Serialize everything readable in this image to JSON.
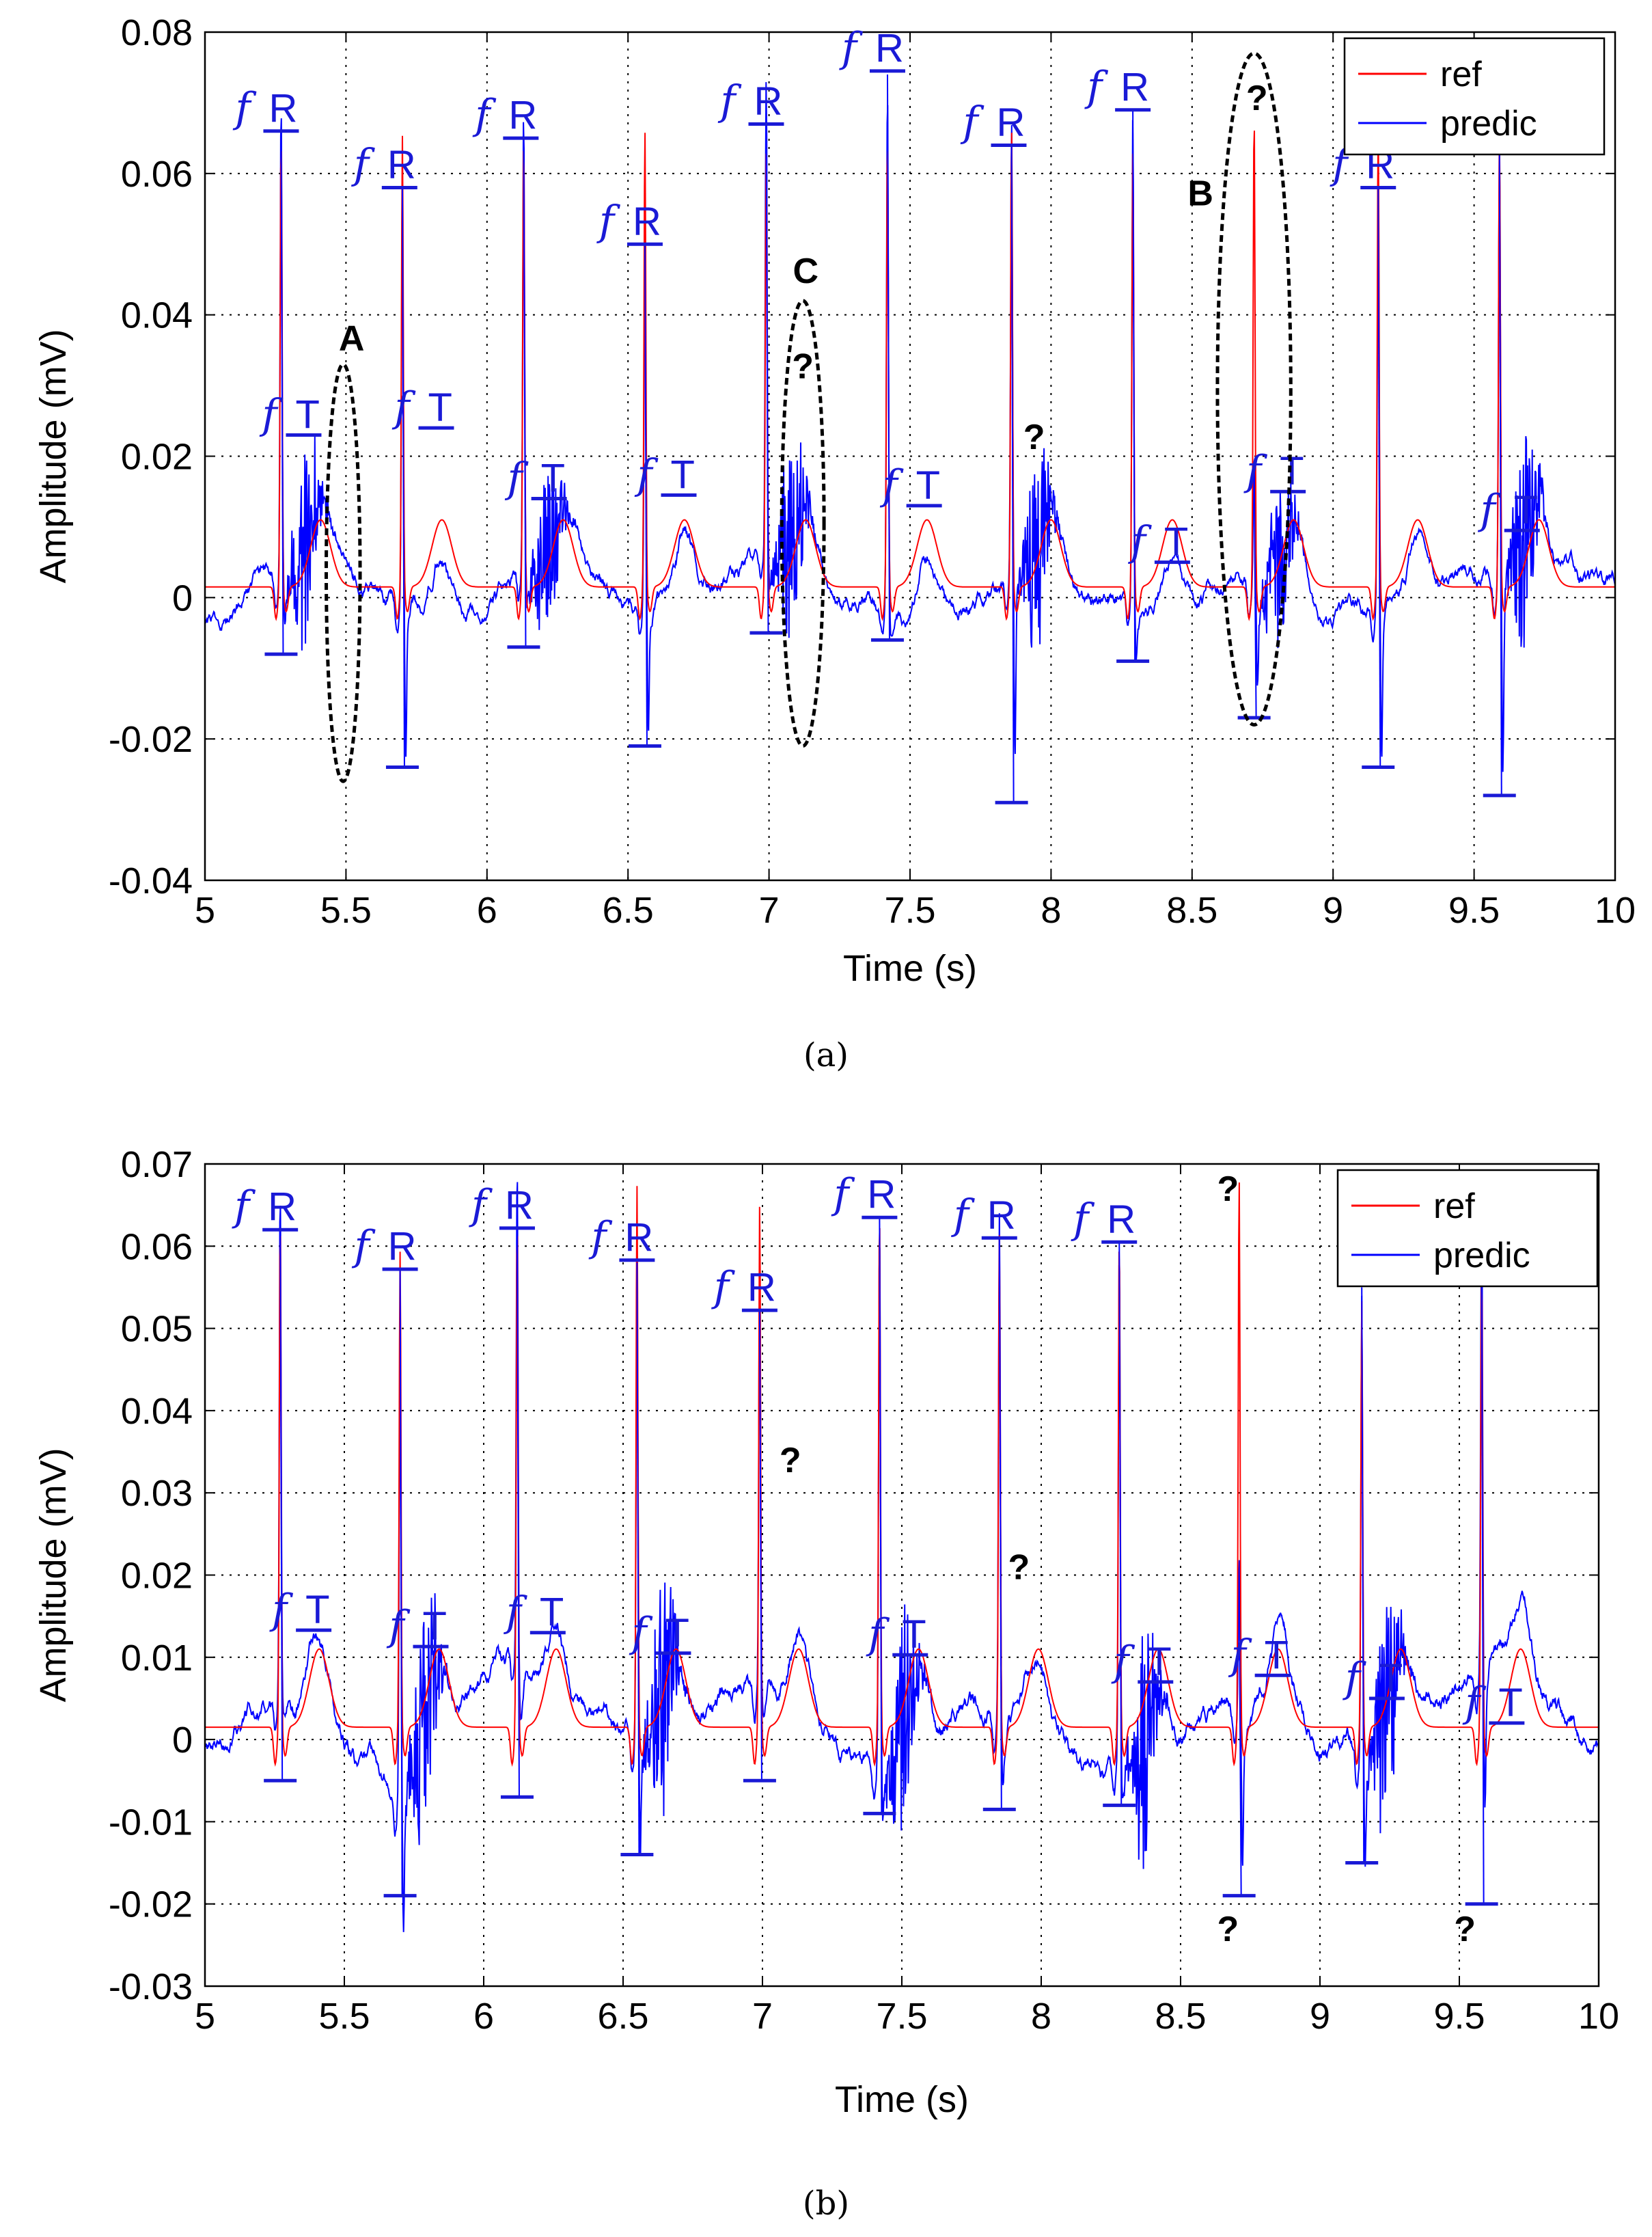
{
  "chart_data": [
    {
      "type": "line",
      "caption": "(a)",
      "xlabel": "Time (s)",
      "ylabel": "Amplitude (mV)",
      "xlim": [
        5,
        10
      ],
      "ylim": [
        -0.04,
        0.08
      ],
      "xticks": [
        "5",
        "5.5",
        "6",
        "6.5",
        "7",
        "7.5",
        "8",
        "8.5",
        "9",
        "9.5",
        "10"
      ],
      "yticks": [
        "-0.04",
        "-0.02",
        "0",
        "0.02",
        "0.04",
        "0.06",
        "0.08"
      ],
      "grid": true,
      "legend": {
        "position": "top-right",
        "entries": [
          "ref",
          "predic"
        ]
      },
      "series": [
        {
          "name": "ref",
          "color": "#ff0000"
        },
        {
          "name": "predic",
          "color": "#0000ff"
        }
      ],
      "r_peaks": [
        {
          "t": 5.27,
          "ref": 0.064,
          "pred": 0.066,
          "trough": -0.008
        },
        {
          "t": 5.7,
          "ref": 0.064,
          "pred": 0.058,
          "trough": -0.024
        },
        {
          "t": 6.13,
          "ref": 0.064,
          "pred": 0.065,
          "trough": -0.007
        },
        {
          "t": 6.56,
          "ref": 0.065,
          "pred": 0.05,
          "trough": -0.021
        },
        {
          "t": 6.99,
          "ref": 0.062,
          "pred": 0.067,
          "trough": -0.005
        },
        {
          "t": 7.42,
          "ref": 0.064,
          "pred": 0.074,
          "trough": -0.006
        },
        {
          "t": 7.86,
          "ref": 0.065,
          "pred": 0.064,
          "trough": -0.029
        },
        {
          "t": 8.29,
          "ref": 0.062,
          "pred": 0.069,
          "trough": -0.009
        },
        {
          "t": 8.72,
          "ref": 0.067,
          "pred": 0.018,
          "trough": -0.017
        },
        {
          "t": 9.16,
          "ref": 0.066,
          "pred": 0.058,
          "trough": -0.024
        },
        {
          "t": 9.59,
          "ref": 0.065,
          "pred": 0.063,
          "trough": -0.028
        }
      ],
      "annotations": [
        {
          "kind": "fR",
          "f": "f",
          "label": "R",
          "x": 5.27,
          "y": 0.066
        },
        {
          "kind": "fR",
          "f": "f",
          "label": "R",
          "x": 5.69,
          "y": 0.058
        },
        {
          "kind": "fR",
          "f": "f",
          "label": "R",
          "x": 6.12,
          "y": 0.065
        },
        {
          "kind": "fR",
          "f": "f",
          "label": "R",
          "x": 6.56,
          "y": 0.05
        },
        {
          "kind": "fR",
          "f": "f",
          "label": "R",
          "x": 6.99,
          "y": 0.067
        },
        {
          "kind": "fR",
          "f": "f",
          "label": "R",
          "x": 7.42,
          "y": 0.0745
        },
        {
          "kind": "fR",
          "f": "f",
          "label": "R",
          "x": 7.85,
          "y": 0.064
        },
        {
          "kind": "fR",
          "f": "f",
          "label": "R",
          "x": 8.29,
          "y": 0.069
        },
        {
          "kind": "fR",
          "f": "f",
          "label": "R",
          "x": 9.16,
          "y": 0.058
        },
        {
          "kind": "fT",
          "f": "f",
          "label": "T",
          "x": 5.35,
          "y": 0.023
        },
        {
          "kind": "fT",
          "f": "f",
          "label": "T",
          "x": 5.82,
          "y": 0.024
        },
        {
          "kind": "fT",
          "f": "f",
          "label": "T",
          "x": 6.22,
          "y": 0.014
        },
        {
          "kind": "fT",
          "f": "f",
          "label": "T",
          "x": 6.68,
          "y": 0.0145
        },
        {
          "kind": "fT",
          "f": "f",
          "label": "T",
          "x": 7.55,
          "y": 0.013
        },
        {
          "kind": "fT",
          "f": "f",
          "label": "T",
          "x": 8.43,
          "y": 0.005
        },
        {
          "kind": "fT",
          "f": "f",
          "label": "T",
          "x": 8.84,
          "y": 0.015
        },
        {
          "kind": "fT",
          "f": "f",
          "label": "T",
          "x": 9.67,
          "y": 0.0095
        }
      ],
      "question_marks": [
        {
          "text": "?",
          "x": 7.12,
          "y": 0.031
        },
        {
          "text": "?",
          "x": 7.94,
          "y": 0.021
        },
        {
          "text": "?",
          "x": 8.73,
          "y": 0.069
        }
      ],
      "regions": [
        {
          "label": "A",
          "cx": 5.49,
          "cy": 0.0035,
          "rx": 0.06,
          "ry": 0.0295,
          "lx": 5.52,
          "ly": 0.035
        },
        {
          "label": "C",
          "cx": 7.12,
          "cy": 0.0105,
          "rx": 0.075,
          "ry": 0.0315,
          "lx": 7.13,
          "ly": 0.0445
        },
        {
          "label": "B",
          "cx": 8.72,
          "cy": 0.0295,
          "rx": 0.13,
          "ry": 0.0475,
          "lx": 8.53,
          "ly": 0.0555
        }
      ]
    },
    {
      "type": "line",
      "caption": "(b)",
      "xlabel": "Time (s)",
      "ylabel": "Amplitude (mV)",
      "xlim": [
        5,
        10
      ],
      "ylim": [
        -0.03,
        0.07
      ],
      "xticks": [
        "5",
        "5.5",
        "6",
        "6.5",
        "7",
        "7.5",
        "8",
        "8.5",
        "9",
        "9.5",
        "10"
      ],
      "yticks": [
        "-0.03",
        "-0.02",
        "-0.01",
        "0",
        "0.01",
        "0.02",
        "0.03",
        "0.04",
        "0.05",
        "0.06",
        "0.07"
      ],
      "grid": true,
      "legend": {
        "position": "top-right",
        "entries": [
          "ref",
          "predic"
        ]
      },
      "series": [
        {
          "name": "ref",
          "color": "#ff0000"
        },
        {
          "name": "predic",
          "color": "#0000ff"
        }
      ],
      "r_peaks": [
        {
          "t": 5.27,
          "ref": 0.062,
          "pred": 0.062,
          "trough": -0.005
        },
        {
          "t": 5.7,
          "ref": 0.058,
          "pred": 0.057,
          "trough": -0.019
        },
        {
          "t": 6.12,
          "ref": 0.062,
          "pred": 0.062,
          "trough": -0.007
        },
        {
          "t": 6.55,
          "ref": 0.066,
          "pred": 0.058,
          "trough": -0.014
        },
        {
          "t": 6.99,
          "ref": 0.064,
          "pred": 0.052,
          "trough": -0.005
        },
        {
          "t": 7.42,
          "ref": 0.063,
          "pred": 0.0635,
          "trough": -0.009
        },
        {
          "t": 7.85,
          "ref": 0.06,
          "pred": 0.061,
          "trough": -0.0085
        },
        {
          "t": 8.28,
          "ref": 0.06,
          "pred": 0.0605,
          "trough": -0.008
        },
        {
          "t": 8.71,
          "ref": 0.067,
          "pred": 0.02,
          "trough": -0.019
        },
        {
          "t": 9.15,
          "ref": 0.052,
          "pred": 0.055,
          "trough": -0.015
        },
        {
          "t": 9.58,
          "ref": 0.056,
          "pred": 0.057,
          "trough": -0.02
        }
      ],
      "annotations": [
        {
          "kind": "fR",
          "f": "f",
          "label": "R",
          "x": 5.27,
          "y": 0.062
        },
        {
          "kind": "fR",
          "f": "f",
          "label": "R",
          "x": 5.7,
          "y": 0.0572
        },
        {
          "kind": "fR",
          "f": "f",
          "label": "R",
          "x": 6.12,
          "y": 0.0622
        },
        {
          "kind": "fR",
          "f": "f",
          "label": "R",
          "x": 6.55,
          "y": 0.0583
        },
        {
          "kind": "fR",
          "f": "f",
          "label": "R",
          "x": 6.99,
          "y": 0.0522
        },
        {
          "kind": "fR",
          "f": "f",
          "label": "R",
          "x": 7.42,
          "y": 0.0635
        },
        {
          "kind": "fR",
          "f": "f",
          "label": "R",
          "x": 7.85,
          "y": 0.061
        },
        {
          "kind": "fR",
          "f": "f",
          "label": "R",
          "x": 8.28,
          "y": 0.0605
        },
        {
          "kind": "fT",
          "f": "f",
          "label": "T",
          "x": 5.39,
          "y": 0.0133
        },
        {
          "kind": "fT",
          "f": "f",
          "label": "T",
          "x": 5.81,
          "y": 0.0113
        },
        {
          "kind": "fT",
          "f": "f",
          "label": "T",
          "x": 6.23,
          "y": 0.013
        },
        {
          "kind": "fT",
          "f": "f",
          "label": "T",
          "x": 6.68,
          "y": 0.0105
        },
        {
          "kind": "fT",
          "f": "f",
          "label": "T",
          "x": 7.53,
          "y": 0.0103
        },
        {
          "kind": "fT",
          "f": "f",
          "label": "T",
          "x": 8.41,
          "y": 0.007
        },
        {
          "kind": "fT",
          "f": "f",
          "label": "T",
          "x": 8.83,
          "y": 0.0078
        },
        {
          "kind": "fT",
          "f": "f",
          "label": "T",
          "x": 9.24,
          "y": 0.005
        },
        {
          "kind": "fT",
          "f": "f",
          "label": "T",
          "x": 9.67,
          "y": 0.002
        }
      ],
      "question_marks": [
        {
          "text": "?",
          "x": 7.1,
          "y": 0.0325
        },
        {
          "text": "?",
          "x": 7.92,
          "y": 0.0195
        },
        {
          "text": "?",
          "x": 8.67,
          "y": 0.0655
        },
        {
          "text": "?",
          "x": 8.67,
          "y": -0.0245
        },
        {
          "text": "?",
          "x": 9.52,
          "y": -0.0245
        }
      ],
      "regions": []
    }
  ]
}
